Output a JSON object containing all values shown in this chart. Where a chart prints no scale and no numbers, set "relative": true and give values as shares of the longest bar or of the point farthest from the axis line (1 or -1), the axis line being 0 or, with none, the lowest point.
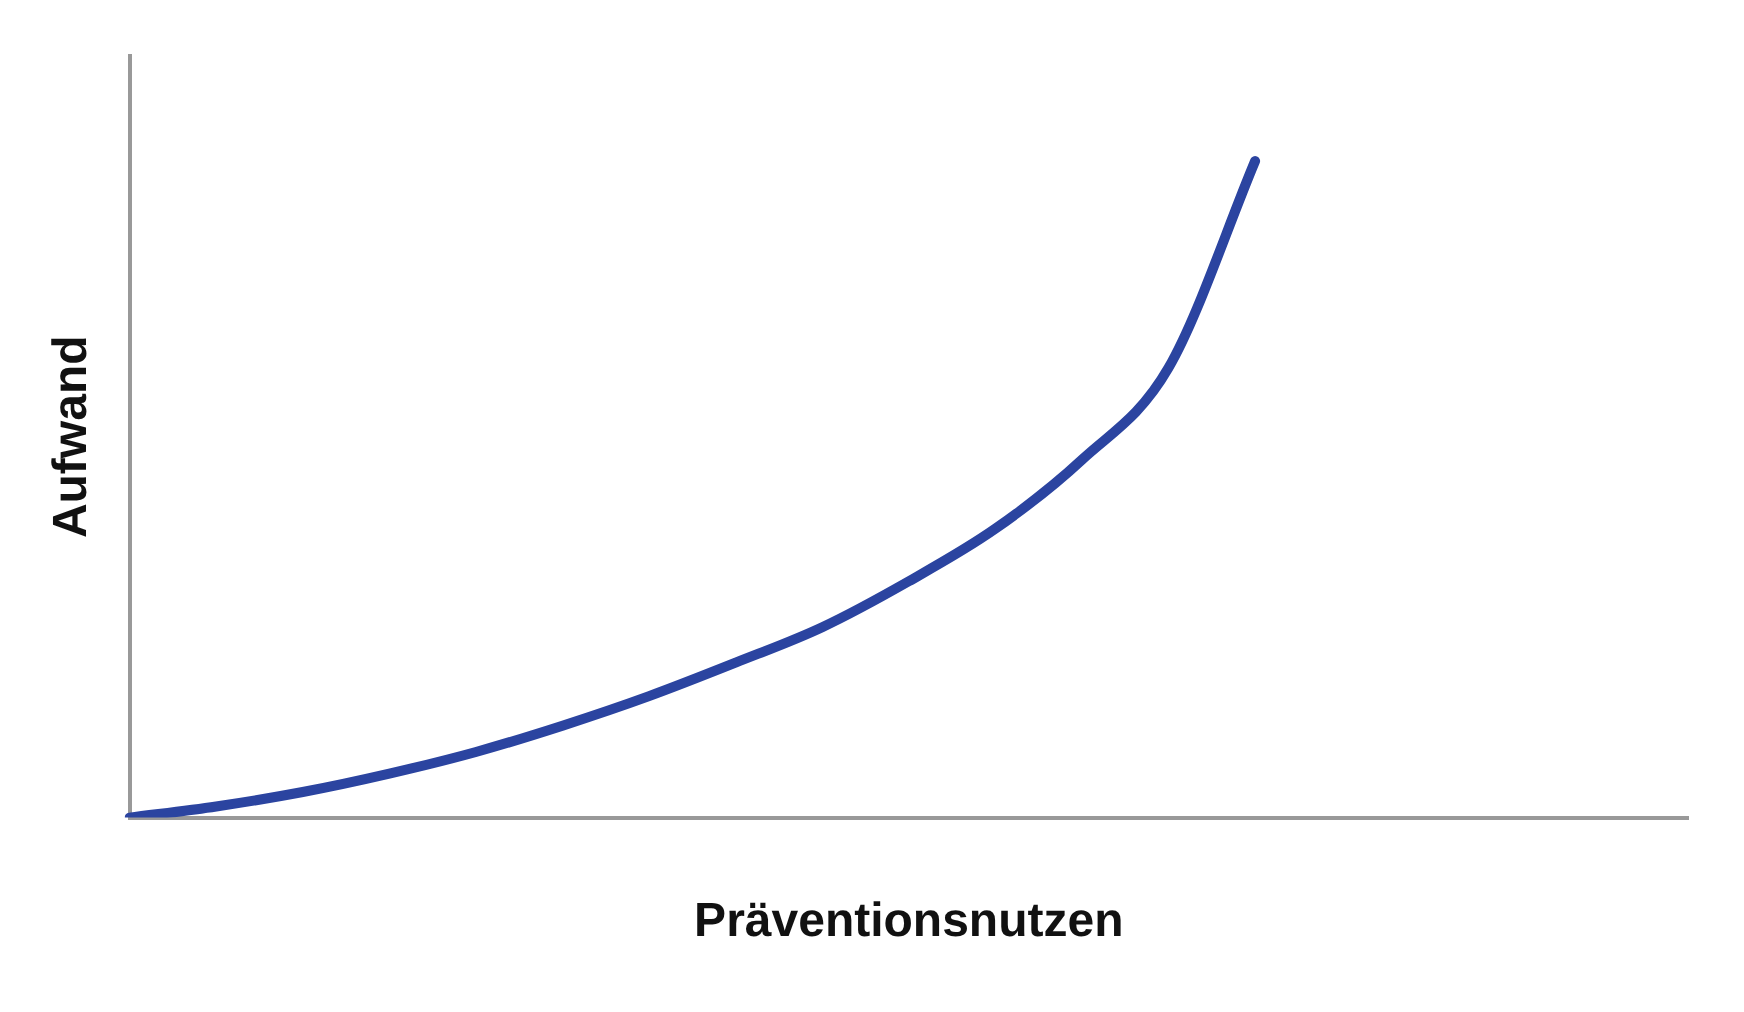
{
  "chart_data": {
    "type": "line",
    "relative": true,
    "xlabel": "Präventionsnutzen",
    "ylabel": "Aufwand",
    "categories": [
      null,
      null,
      null,
      null,
      null,
      null,
      null,
      null,
      null,
      null,
      null,
      null,
      null,
      null,
      null,
      null,
      null,
      null,
      null
    ],
    "series": [
      {
        "color": "#2b44a0",
        "values": [
          0,
          0.017,
          0.039,
          0.067,
          0.1,
          0.14,
          0.185,
          0.236,
          0.29,
          0.36,
          0.44,
          0.545,
          0.685,
          1,
          null,
          null,
          null,
          null,
          null
        ]
      }
    ],
    "grid": false,
    "legend": false,
    "marker": "none",
    "line_style": "solid"
  }
}
